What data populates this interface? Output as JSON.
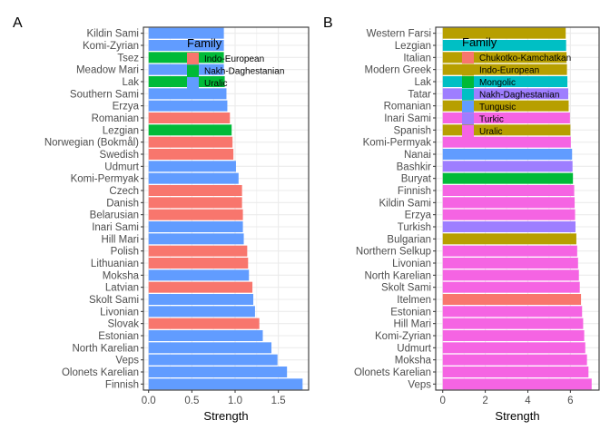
{
  "chart_data": [
    {
      "panel": "A",
      "type": "bar",
      "orientation": "horizontal",
      "xlabel": "Strength",
      "ylabel": "",
      "xlim": [
        -0.06,
        1.85
      ],
      "xticks": [
        0.0,
        0.5,
        1.0,
        1.5
      ],
      "xtick_labels": [
        "0.0",
        "0.5",
        "1.0",
        "1.5"
      ],
      "grid": true,
      "legend": {
        "title": "Family",
        "placement": "top-center",
        "entries": [
          {
            "label": "Indo-European",
            "color": "#F8766D"
          },
          {
            "label": "Nakh-Daghestanian",
            "color": "#00BA38"
          },
          {
            "label": "Uralic",
            "color": "#619CFF"
          }
        ]
      },
      "bars": [
        {
          "label": "Kildin Sami",
          "value": 0.87,
          "family": "Uralic"
        },
        {
          "label": "Komi-Zyrian",
          "value": 0.87,
          "family": "Uralic"
        },
        {
          "label": "Tsez",
          "value": 0.87,
          "family": "Nakh-Daghestanian"
        },
        {
          "label": "Meadow Mari",
          "value": 0.87,
          "family": "Uralic"
        },
        {
          "label": "Lak",
          "value": 0.88,
          "family": "Nakh-Daghestanian"
        },
        {
          "label": "Southern Sami",
          "value": 0.9,
          "family": "Uralic"
        },
        {
          "label": "Erzya",
          "value": 0.91,
          "family": "Uralic"
        },
        {
          "label": "Romanian",
          "value": 0.94,
          "family": "Indo-European"
        },
        {
          "label": "Lezgian",
          "value": 0.96,
          "family": "Nakh-Daghestanian"
        },
        {
          "label": "Norwegian (Bokmål)",
          "value": 0.97,
          "family": "Indo-European"
        },
        {
          "label": "Swedish",
          "value": 0.98,
          "family": "Indo-European"
        },
        {
          "label": "Udmurt",
          "value": 1.01,
          "family": "Uralic"
        },
        {
          "label": "Komi-Permyak",
          "value": 1.04,
          "family": "Uralic"
        },
        {
          "label": "Czech",
          "value": 1.08,
          "family": "Indo-European"
        },
        {
          "label": "Danish",
          "value": 1.08,
          "family": "Indo-European"
        },
        {
          "label": "Belarusian",
          "value": 1.09,
          "family": "Indo-European"
        },
        {
          "label": "Inari Sami",
          "value": 1.09,
          "family": "Uralic"
        },
        {
          "label": "Hill Mari",
          "value": 1.1,
          "family": "Uralic"
        },
        {
          "label": "Polish",
          "value": 1.14,
          "family": "Indo-European"
        },
        {
          "label": "Lithuanian",
          "value": 1.15,
          "family": "Indo-European"
        },
        {
          "label": "Moksha",
          "value": 1.16,
          "family": "Uralic"
        },
        {
          "label": "Latvian",
          "value": 1.2,
          "family": "Indo-European"
        },
        {
          "label": "Skolt Sami",
          "value": 1.21,
          "family": "Uralic"
        },
        {
          "label": "Livonian",
          "value": 1.23,
          "family": "Uralic"
        },
        {
          "label": "Slovak",
          "value": 1.28,
          "family": "Indo-European"
        },
        {
          "label": "Estonian",
          "value": 1.32,
          "family": "Uralic"
        },
        {
          "label": "North Karelian",
          "value": 1.42,
          "family": "Uralic"
        },
        {
          "label": "Veps",
          "value": 1.49,
          "family": "Uralic"
        },
        {
          "label": "Olonets Karelian",
          "value": 1.6,
          "family": "Uralic"
        },
        {
          "label": "Finnish",
          "value": 1.78,
          "family": "Uralic"
        }
      ]
    },
    {
      "panel": "B",
      "type": "bar",
      "orientation": "horizontal",
      "xlabel": "Strength",
      "ylabel": "",
      "xlim": [
        -0.33,
        7.35
      ],
      "xticks": [
        0,
        2,
        4,
        6
      ],
      "xtick_labels": [
        "0",
        "2",
        "4",
        "6"
      ],
      "grid": true,
      "legend": {
        "title": "Family",
        "placement": "top-center",
        "entries": [
          {
            "label": "Chukotko-Kamchatkan",
            "color": "#F8766D"
          },
          {
            "label": "Indo-European",
            "color": "#B79F00"
          },
          {
            "label": "Mongolic",
            "color": "#00BA38"
          },
          {
            "label": "Nakh-Daghestanian",
            "color": "#00BFC4"
          },
          {
            "label": "Tungusic",
            "color": "#619CFF"
          },
          {
            "label": "Turkic",
            "color": "#9E7EFF"
          },
          {
            "label": "Uralic",
            "color": "#F564E3"
          }
        ]
      },
      "bars": [
        {
          "label": "Western Farsi",
          "value": 5.78,
          "family": "Indo-European"
        },
        {
          "label": "Lezgian",
          "value": 5.8,
          "family": "Nakh-Daghestanian"
        },
        {
          "label": "Italian",
          "value": 5.82,
          "family": "Indo-European"
        },
        {
          "label": "Modern Greek",
          "value": 5.84,
          "family": "Indo-European"
        },
        {
          "label": "Lak",
          "value": 5.86,
          "family": "Nakh-Daghestanian"
        },
        {
          "label": "Tatar",
          "value": 5.9,
          "family": "Turkic"
        },
        {
          "label": "Romanian",
          "value": 5.92,
          "family": "Indo-European"
        },
        {
          "label": "Inari Sami",
          "value": 5.98,
          "family": "Uralic"
        },
        {
          "label": "Spanish",
          "value": 6.0,
          "family": "Indo-European"
        },
        {
          "label": "Komi-Permyak",
          "value": 6.02,
          "family": "Uralic"
        },
        {
          "label": "Nanai",
          "value": 6.08,
          "family": "Tungusic"
        },
        {
          "label": "Bashkir",
          "value": 6.1,
          "family": "Turkic"
        },
        {
          "label": "Buryat",
          "value": 6.12,
          "family": "Mongolic"
        },
        {
          "label": "Finnish",
          "value": 6.18,
          "family": "Uralic"
        },
        {
          "label": "Kildin Sami",
          "value": 6.2,
          "family": "Uralic"
        },
        {
          "label": "Erzya",
          "value": 6.22,
          "family": "Uralic"
        },
        {
          "label": "Turkish",
          "value": 6.24,
          "family": "Turkic"
        },
        {
          "label": "Bulgarian",
          "value": 6.28,
          "family": "Indo-European"
        },
        {
          "label": "Northern Selkup",
          "value": 6.32,
          "family": "Uralic"
        },
        {
          "label": "Livonian",
          "value": 6.36,
          "family": "Uralic"
        },
        {
          "label": "North Karelian",
          "value": 6.4,
          "family": "Uralic"
        },
        {
          "label": "Skolt Sami",
          "value": 6.44,
          "family": "Uralic"
        },
        {
          "label": "Itelmen",
          "value": 6.5,
          "family": "Chukotko-Kamchatkan"
        },
        {
          "label": "Estonian",
          "value": 6.55,
          "family": "Uralic"
        },
        {
          "label": "Hill Mari",
          "value": 6.6,
          "family": "Uralic"
        },
        {
          "label": "Komi-Zyrian",
          "value": 6.65,
          "family": "Uralic"
        },
        {
          "label": "Udmurt",
          "value": 6.7,
          "family": "Uralic"
        },
        {
          "label": "Moksha",
          "value": 6.78,
          "family": "Uralic"
        },
        {
          "label": "Olonets Karelian",
          "value": 6.85,
          "family": "Uralic"
        },
        {
          "label": "Veps",
          "value": 7.0,
          "family": "Uralic"
        }
      ]
    }
  ]
}
